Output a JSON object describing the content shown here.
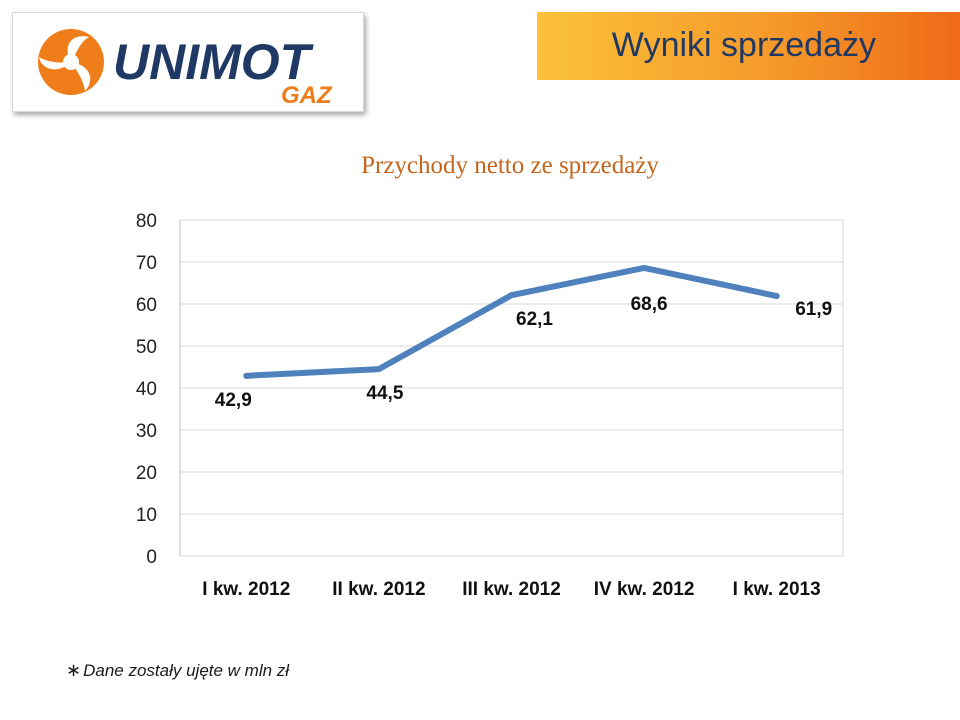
{
  "header": {
    "page_title": "Wyniki sprzedaży",
    "logo_text_main": "UNIMOT",
    "logo_text_sub": "GAZ",
    "logo_icon": "propeller-swirl-icon"
  },
  "colors": {
    "brand_navy": "#1f3864",
    "brand_orange": "#ef7d1a",
    "title_orange": "#c5651d",
    "line_blue": "#4f81bd"
  },
  "chart_data": {
    "type": "line",
    "title": "Przychody netto ze sprzedaży",
    "categories": [
      "I kw. 2012",
      "II kw. 2012",
      "III kw. 2012",
      "IV kw. 2012",
      "I kw. 2013"
    ],
    "series": [
      {
        "values": [
          42.9,
          44.5,
          62.1,
          68.6,
          61.9
        ]
      }
    ],
    "data_labels": [
      "42,9",
      "44,5",
      "62,1",
      "68,6",
      "61,9"
    ],
    "y_ticks": [
      0,
      10,
      20,
      30,
      40,
      50,
      60,
      70,
      80
    ],
    "ylim": [
      0,
      80
    ],
    "grid": true,
    "legend": "none"
  },
  "footnote": {
    "text": "Dane zostały ujęte w mln zł"
  }
}
